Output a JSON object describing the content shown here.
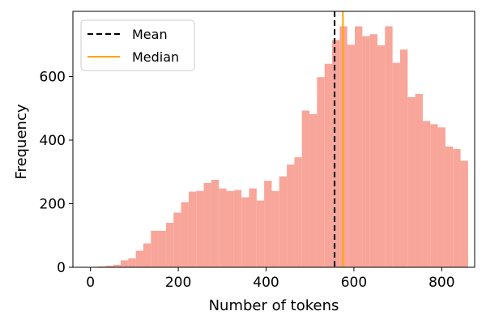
{
  "chart_data": {
    "type": "bar",
    "title": "",
    "xlabel": "Number of tokens",
    "ylabel": "Frequency",
    "xlim": [
      -40,
      875
    ],
    "ylim": [
      0,
      805
    ],
    "xticks": [
      0,
      200,
      400,
      600,
      800
    ],
    "yticks": [
      0,
      200,
      400,
      600
    ],
    "grid": false,
    "legend_position": "top-left",
    "bar_color": "#f8a59a",
    "bin_width": 17.2,
    "bins_start": 0,
    "counts": [
      0,
      3,
      5,
      8,
      22,
      28,
      52,
      75,
      115,
      115,
      140,
      172,
      205,
      238,
      240,
      265,
      275,
      248,
      240,
      243,
      220,
      248,
      210,
      272,
      240,
      286,
      323,
      346,
      493,
      482,
      598,
      640,
      715,
      758,
      700,
      758,
      727,
      733,
      698,
      758,
      643,
      685,
      535,
      545,
      460,
      450,
      440,
      380,
      372,
      335
    ],
    "mean": 556,
    "median": 575,
    "legend": [
      {
        "label": "Mean",
        "color": "#000000",
        "style": "dashed"
      },
      {
        "label": "Median",
        "color": "#ffa500",
        "style": "solid"
      }
    ]
  }
}
